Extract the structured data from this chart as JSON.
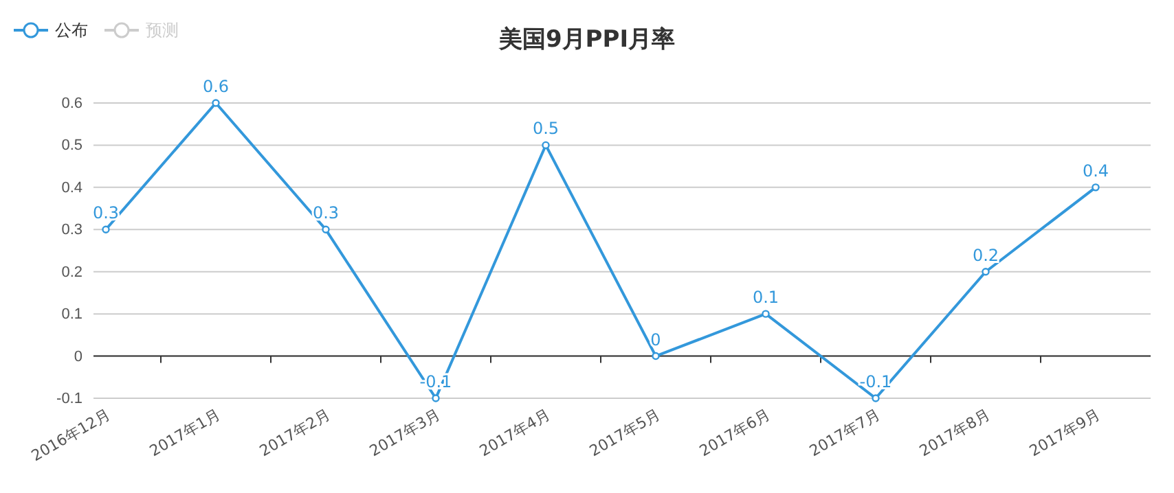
{
  "chart_data": {
    "type": "line",
    "title": "美国9月PPI月率",
    "categories": [
      "2016年12月",
      "2017年1月",
      "2017年2月",
      "2017年3月",
      "2017年4月",
      "2017年5月",
      "2017年6月",
      "2017年7月",
      "2017年8月",
      "2017年9月"
    ],
    "series": [
      {
        "name": "公布",
        "color": "#3398db",
        "values": [
          0.3,
          0.6,
          0.3,
          -0.1,
          0.5,
          0,
          0.1,
          -0.1,
          0.2,
          0.4
        ]
      },
      {
        "name": "预测",
        "color": "#cccccc",
        "values": [
          null,
          null,
          null,
          null,
          null,
          null,
          null,
          null,
          null,
          null
        ]
      }
    ],
    "ylim": [
      -0.1,
      0.6
    ],
    "yticks": [
      -0.1,
      0,
      0.1,
      0.2,
      0.3,
      0.4,
      0.5,
      0.6
    ],
    "grid": "y",
    "legend": "top left",
    "marker": "circle",
    "line_style": "solid",
    "data_labels": true
  }
}
